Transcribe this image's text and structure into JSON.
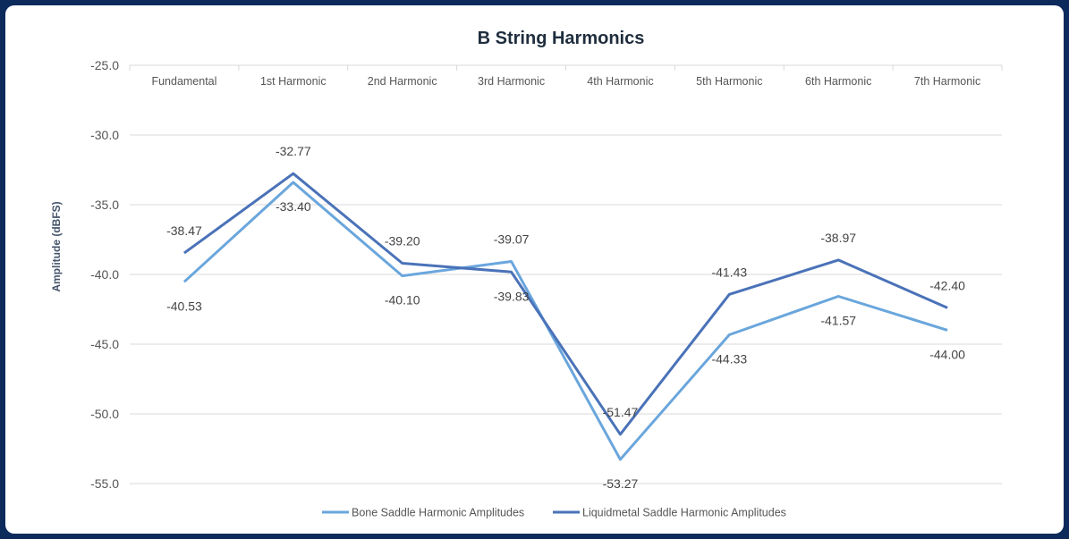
{
  "chart_data": {
    "type": "line",
    "title": "B String Harmonics",
    "ylabel": "Amplitude (dBFS)",
    "xlabel": "",
    "ylim": [
      -55.0,
      -25.0
    ],
    "yticks": [
      "-25.0",
      "-30.0",
      "-35.0",
      "-40.0",
      "-45.0",
      "-50.0",
      "-55.0"
    ],
    "x_axis_position": "top",
    "grid": true,
    "legend_position": "bottom",
    "categories": [
      "Fundamental",
      "1st Harmonic",
      "2nd Harmonic",
      "3rd Harmonic",
      "4th Harmonic",
      "5th Harmonic",
      "6th Harmonic",
      "7th Harmonic"
    ],
    "series": [
      {
        "name": "Bone Saddle Harmonic Amplitudes",
        "color": "#6aa6dc",
        "values": [
          -40.53,
          -33.4,
          -40.1,
          -39.07,
          -53.27,
          -44.33,
          -41.57,
          -44.0
        ],
        "labels": [
          "-40.53",
          "-33.40",
          "-40.10",
          "-39.07",
          "-53.27",
          "-44.33",
          "-41.57",
          "-44.00"
        ]
      },
      {
        "name": "Liquidmetal Saddle Harmonic Amplitudes",
        "color": "#4a72b8",
        "values": [
          -38.47,
          -32.77,
          -39.2,
          -39.83,
          -51.47,
          -41.43,
          -38.97,
          -42.4
        ],
        "labels": [
          "-38.47",
          "-32.77",
          "-39.20",
          "-39.83",
          "-51.47",
          "-41.43",
          "-38.97",
          "-42.40"
        ]
      }
    ]
  }
}
